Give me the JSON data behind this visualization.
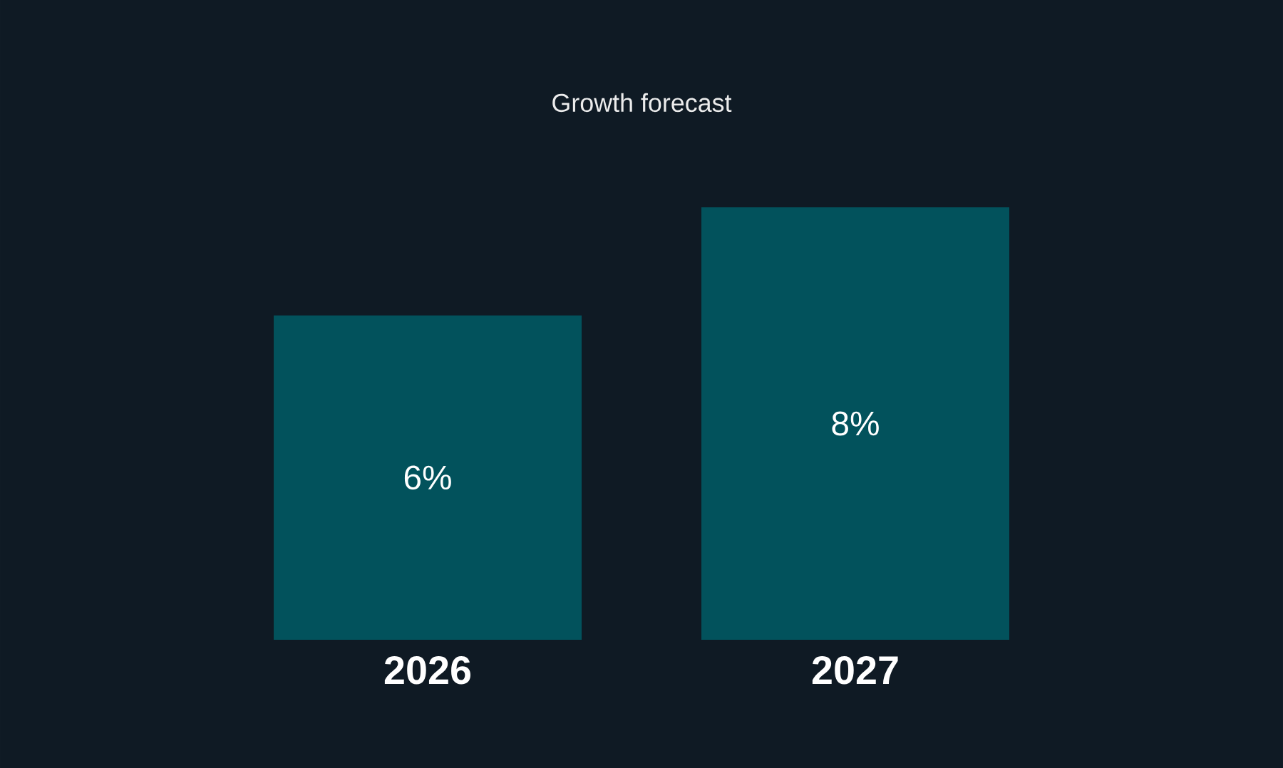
{
  "chart_data": {
    "type": "bar",
    "title": "Growth forecast",
    "categories": [
      "2026",
      "2027"
    ],
    "values": [
      6,
      8
    ],
    "value_labels": [
      "6%",
      "8%"
    ],
    "color": "#02525c"
  }
}
